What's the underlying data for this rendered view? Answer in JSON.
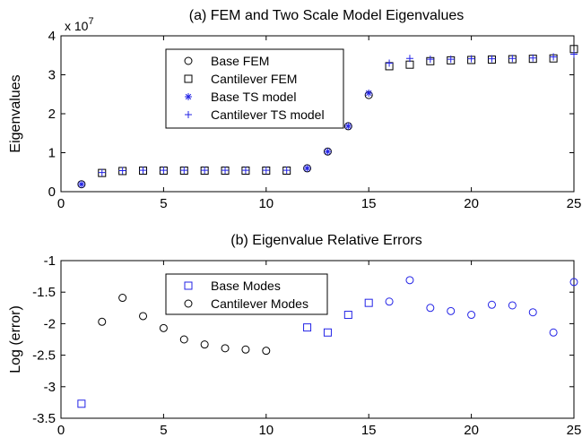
{
  "chart_data": [
    {
      "type": "scatter",
      "title": "(a) FEM and Two Scale Model Eigenvalues",
      "xlabel": "",
      "ylabel": "Eigenvalues",
      "y_scale_label": "x 10",
      "y_scale_exp": "7",
      "xlim": [
        0,
        25
      ],
      "ylim": [
        0,
        4
      ],
      "xticks": [
        "0",
        "5",
        "10",
        "15",
        "20",
        "25"
      ],
      "yticks": [
        "0",
        "1",
        "2",
        "3",
        "4"
      ],
      "grid": false,
      "legend_position": "top-center",
      "series": [
        {
          "name": "Base FEM",
          "marker": "circle",
          "color": "#000000",
          "x": [
            1,
            12,
            13,
            14,
            15
          ],
          "y": [
            0.19,
            0.6,
            1.03,
            1.68,
            2.48
          ]
        },
        {
          "name": "Cantilever FEM",
          "marker": "square",
          "color": "#000000",
          "x": [
            2,
            3,
            4,
            5,
            6,
            7,
            8,
            9,
            10,
            11,
            16,
            17,
            18,
            19,
            20,
            21,
            22,
            23,
            24,
            25
          ],
          "y": [
            0.48,
            0.53,
            0.54,
            0.54,
            0.54,
            0.54,
            0.54,
            0.54,
            0.54,
            0.54,
            3.22,
            3.26,
            3.35,
            3.37,
            3.38,
            3.39,
            3.4,
            3.41,
            3.42,
            3.66
          ]
        },
        {
          "name": "Base TS model",
          "marker": "asterisk",
          "color": "#2323e6",
          "x": [
            1,
            12,
            13,
            14,
            15
          ],
          "y": [
            0.19,
            0.6,
            1.03,
            1.68,
            2.53
          ]
        },
        {
          "name": "Cantilever TS model",
          "marker": "plus",
          "color": "#2323e6",
          "x": [
            2,
            3,
            4,
            5,
            6,
            7,
            8,
            9,
            10,
            11,
            16,
            17,
            18,
            19,
            20,
            21,
            22,
            23,
            24,
            25
          ],
          "y": [
            0.49,
            0.54,
            0.55,
            0.55,
            0.55,
            0.55,
            0.55,
            0.55,
            0.55,
            0.55,
            3.3,
            3.42,
            3.4,
            3.4,
            3.41,
            3.41,
            3.42,
            3.43,
            3.46,
            3.53
          ]
        }
      ]
    },
    {
      "type": "scatter",
      "title": "(b) Eigenvalue Relative Errors",
      "xlabel": "",
      "ylabel": "Log (error)",
      "xlim": [
        0,
        25
      ],
      "ylim": [
        -3.5,
        -1
      ],
      "xticks": [
        "0",
        "5",
        "10",
        "15",
        "20",
        "25"
      ],
      "yticks": [
        "-3.5",
        "-3",
        "-2.5",
        "-2",
        "-1.5",
        "-1"
      ],
      "grid": false,
      "legend_position": "top-center",
      "series": [
        {
          "name": "Base Modes",
          "marker": "square",
          "color": "#2323e6",
          "x": [
            1,
            12,
            13,
            14,
            15
          ],
          "y": [
            -3.27,
            -2.06,
            -2.14,
            -1.86,
            -1.67
          ]
        },
        {
          "name": "Cantilever Modes",
          "marker": "circle",
          "color": "#000000",
          "x": [
            2,
            3,
            4,
            5,
            6,
            7,
            8,
            9,
            10
          ],
          "y": [
            -1.97,
            -1.59,
            -1.88,
            -2.07,
            -2.25,
            -2.33,
            -2.39,
            -2.41,
            -2.43
          ]
        },
        {
          "name": "",
          "marker": "circle",
          "color": "#2323e6",
          "x": [
            16,
            17,
            18,
            19,
            20,
            21,
            22,
            23,
            24,
            25
          ],
          "y": [
            -1.65,
            -1.31,
            -1.75,
            -1.8,
            -1.86,
            -1.7,
            -1.71,
            -1.82,
            -2.14,
            -1.34
          ]
        }
      ]
    }
  ]
}
